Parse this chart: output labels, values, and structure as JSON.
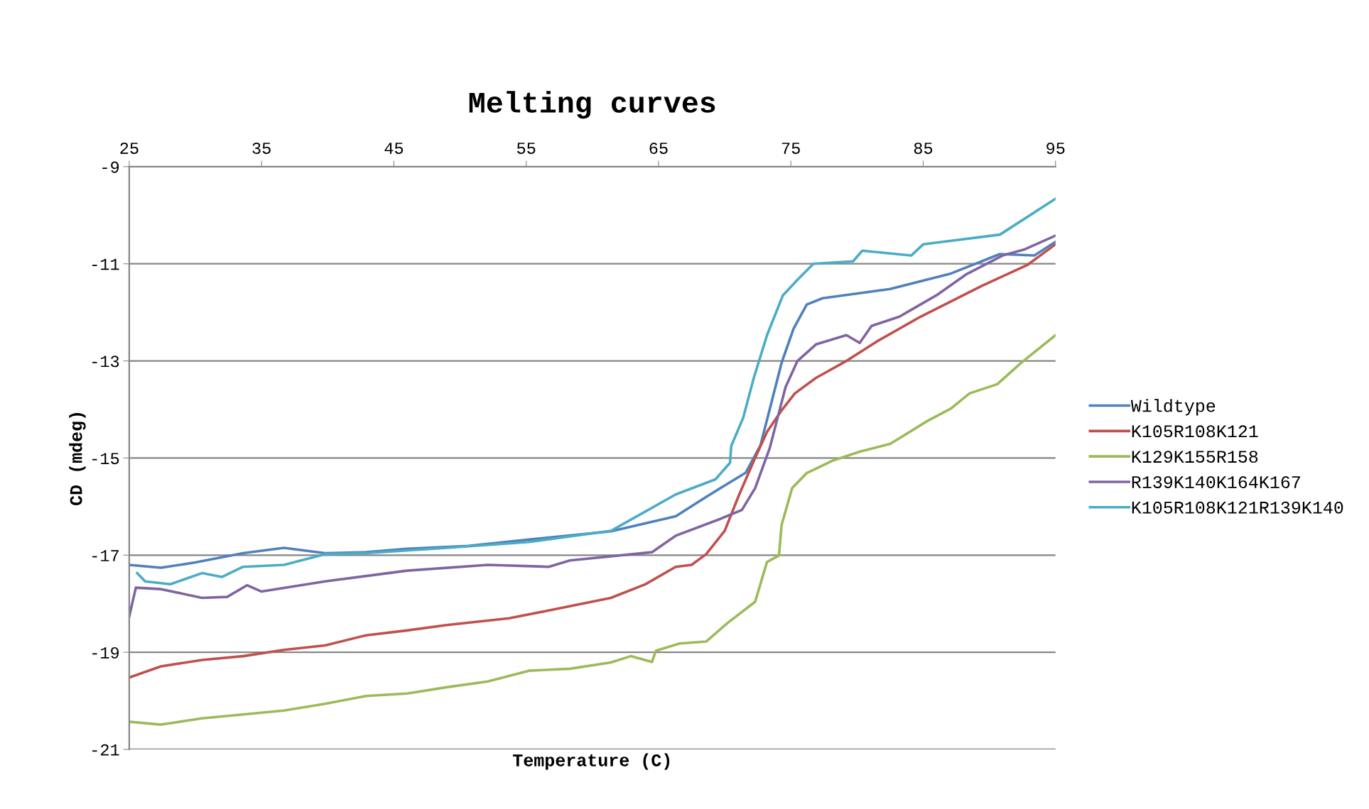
{
  "chart_data": {
    "type": "line",
    "title": "Melting curves",
    "xlabel": "Temperature (C)",
    "ylabel": "CD (mdeg)",
    "xlim": [
      25,
      95
    ],
    "xticks": [
      25,
      35,
      45,
      55,
      65,
      75,
      85,
      95
    ],
    "ylim": [
      -21,
      -9
    ],
    "yticks": [
      -21,
      -19,
      -17,
      -15,
      -13,
      -11,
      -9
    ],
    "grid": "y",
    "legend": "right",
    "marker": "none",
    "line_style": "solid",
    "series": [
      {
        "name": "Wildtype",
        "color": "#4f81bd",
        "x": [
          25,
          27.4,
          30,
          33.6,
          36.7,
          39.8,
          42.9,
          46,
          50.6,
          55.2,
          61.4,
          66.3,
          68.6,
          71.6,
          72.7,
          73.4,
          74.3,
          75.2,
          76.2,
          77.4,
          82.5,
          87.1,
          90.8,
          93.4,
          95
        ],
        "values": [
          -17.2,
          -17.26,
          -17.15,
          -16.96,
          -16.85,
          -16.96,
          -16.94,
          -16.87,
          -16.81,
          -16.68,
          -16.51,
          -16.2,
          -15.8,
          -15.3,
          -14.74,
          -14.0,
          -13.04,
          -12.34,
          -11.84,
          -11.71,
          -11.52,
          -11.2,
          -10.8,
          -10.83,
          -10.55
        ]
      },
      {
        "name": "K105R108K121",
        "color": "#c0504d",
        "x": [
          25,
          27.4,
          30.5,
          33.6,
          36.7,
          39.8,
          42.9,
          46,
          49,
          53.7,
          56.7,
          61.4,
          64,
          66.3,
          67.5,
          68.6,
          70,
          71.1,
          72.2,
          73.2,
          74.3,
          75.3,
          76.9,
          79.2,
          81.5,
          84.8,
          89.4,
          92.9,
          95
        ],
        "values": [
          -19.52,
          -19.29,
          -19.16,
          -19.08,
          -18.95,
          -18.86,
          -18.65,
          -18.55,
          -18.44,
          -18.3,
          -18.14,
          -17.88,
          -17.6,
          -17.24,
          -17.2,
          -16.98,
          -16.5,
          -15.75,
          -15.06,
          -14.46,
          -14.02,
          -13.67,
          -13.35,
          -13.0,
          -12.6,
          -12.09,
          -11.46,
          -11.02,
          -10.6
        ]
      },
      {
        "name": "K129K155R158",
        "color": "#9bbb59",
        "x": [
          25,
          27.4,
          30.5,
          33.6,
          36.7,
          39.8,
          42.9,
          46,
          49,
          52.1,
          55.2,
          58.3,
          61.4,
          62.9,
          64.5,
          64.8,
          66.6,
          68.6,
          70.2,
          72.3,
          73.2,
          74.1,
          74.3,
          75.1,
          76.2,
          78.1,
          80.2,
          82.5,
          85.3,
          87.1,
          88.5,
          90.6,
          92.4,
          95
        ],
        "values": [
          -20.43,
          -20.49,
          -20.36,
          -20.28,
          -20.2,
          -20.06,
          -19.9,
          -19.85,
          -19.72,
          -19.6,
          -19.38,
          -19.34,
          -19.21,
          -19.08,
          -19.2,
          -18.97,
          -18.82,
          -18.78,
          -18.4,
          -17.96,
          -17.14,
          -17.01,
          -16.38,
          -15.62,
          -15.31,
          -15.06,
          -14.87,
          -14.71,
          -14.24,
          -13.98,
          -13.67,
          -13.48,
          -13.04,
          -12.47
        ]
      },
      {
        "name": "R139K140K164K167",
        "color": "#8064a2",
        "x": [
          25,
          25.5,
          27.4,
          30.5,
          32.4,
          33.9,
          35,
          39.8,
          46,
          52.1,
          56.7,
          58.3,
          64.5,
          66.3,
          69.7,
          71.3,
          72.3,
          73.4,
          74,
          74.6,
          75.5,
          76.9,
          79.2,
          80.2,
          81.1,
          83.2,
          86,
          88.3,
          91,
          92.7,
          95
        ],
        "values": [
          -18.26,
          -17.67,
          -17.7,
          -17.88,
          -17.86,
          -17.62,
          -17.75,
          -17.54,
          -17.32,
          -17.2,
          -17.24,
          -17.11,
          -16.94,
          -16.6,
          -16.25,
          -16.07,
          -15.62,
          -14.8,
          -14.17,
          -13.54,
          -13.0,
          -12.66,
          -12.47,
          -12.63,
          -12.28,
          -12.09,
          -11.65,
          -11.21,
          -10.83,
          -10.7,
          -10.42
        ]
      },
      {
        "name": "K105R108K121R139K140",
        "color": "#4bacc6",
        "x": [
          25.6,
          26.2,
          28.1,
          30.5,
          32,
          33.6,
          36.7,
          39.8,
          42.9,
          49,
          55.2,
          61.4,
          66.3,
          69.3,
          70.4,
          70.5,
          71.4,
          72.2,
          73.2,
          74.4,
          75.5,
          76.7,
          79.7,
          80.4,
          84.1,
          85,
          90.8,
          95
        ],
        "values": [
          -17.37,
          -17.54,
          -17.6,
          -17.37,
          -17.45,
          -17.24,
          -17.2,
          -16.98,
          -16.96,
          -16.85,
          -16.73,
          -16.5,
          -15.75,
          -15.44,
          -15.1,
          -14.75,
          -14.17,
          -13.35,
          -12.47,
          -11.65,
          -11.33,
          -11.0,
          -10.95,
          -10.73,
          -10.83,
          -10.6,
          -10.4,
          -9.66
        ]
      }
    ]
  }
}
